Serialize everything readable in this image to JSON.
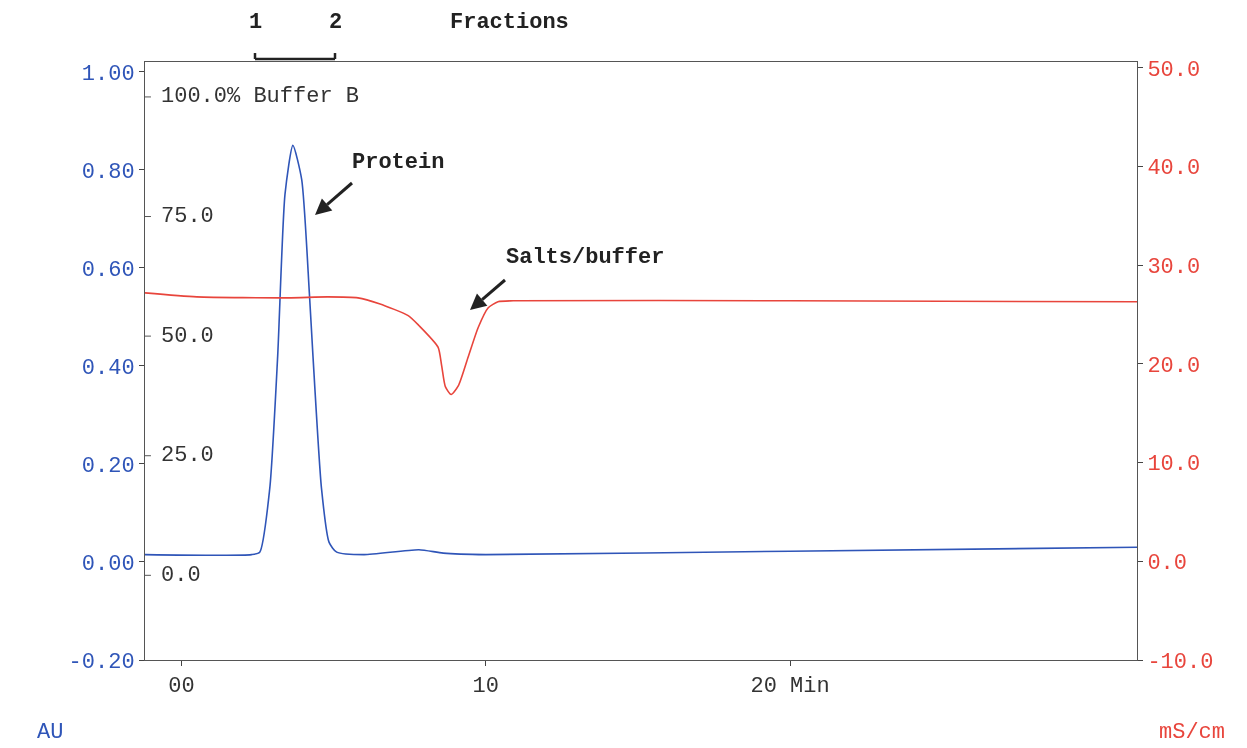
{
  "chart_data": {
    "type": "line",
    "ylabel": "AU",
    "y2label": "mS/cm",
    "grid": false,
    "marker": "none",
    "line_style": "solid",
    "xlim": [
      -1.2,
      31.4
    ],
    "xticks": [
      {
        "value": 0,
        "label": "00"
      },
      10,
      {
        "value": 20,
        "label": "20 Min"
      }
    ],
    "ylim": [
      -0.2,
      1.02
    ],
    "yticks": [
      {
        "value": -0.2,
        "label": "-0.20"
      },
      {
        "value": 0,
        "label": "0.00"
      },
      {
        "value": 0.2,
        "label": "0.20"
      },
      {
        "value": 0.4,
        "label": "0.40"
      },
      {
        "value": 0.6,
        "label": "0.60"
      },
      {
        "value": 0.8,
        "label": "0.80"
      },
      {
        "value": 1,
        "label": "1.00"
      }
    ],
    "y2lim": [
      -10,
      50.6
    ],
    "y2ticks": [
      {
        "value": -10,
        "label": "-10.0"
      },
      {
        "value": 0,
        "label": "0.0"
      },
      {
        "value": 10,
        "label": "10.0"
      },
      {
        "value": 20,
        "label": "20.0"
      },
      {
        "value": 30,
        "label": "30.0"
      },
      {
        "value": 40,
        "label": "40.0"
      },
      {
        "value": 50,
        "label": "50.0"
      }
    ],
    "y3lim": [
      -17.7,
      107.3
    ],
    "y3ticks": [
      {
        "value": 0,
        "label": "0.0"
      },
      {
        "value": 25,
        "label": "25.0"
      },
      {
        "value": 50,
        "label": "50.0"
      },
      {
        "value": 75,
        "label": "75.0"
      },
      {
        "value": 100,
        "label": "100.0% Buffer B"
      }
    ],
    "series": [
      {
        "color": "#2f55b8",
        "x": [
          -1.2,
          2.3,
          2.57,
          2.9,
          3.16,
          3.4,
          3.66,
          3.95,
          4.2,
          4.32,
          4.6,
          4.85,
          5.1,
          6,
          7.8,
          8.6,
          10,
          20,
          31.4
        ],
        "values": [
          0.015,
          0.015,
          0.02,
          0.15,
          0.42,
          0.75,
          0.85,
          0.78,
          0.55,
          0.42,
          0.15,
          0.04,
          0.02,
          0.015,
          0.025,
          0.018,
          0.015,
          0.022,
          0.03
        ]
      },
      {
        "color": "#e8453c",
        "axis": "y2",
        "x": [
          -1.2,
          0.5,
          3.5,
          4.8,
          5.8,
          6.5,
          7.45,
          7.8,
          8.43,
          8.55,
          8.67,
          8.86,
          9.1,
          9.42,
          9.75,
          10.08,
          10.4,
          10.9,
          20,
          31.4
        ],
        "values": [
          27.2,
          26.8,
          26.7,
          26.8,
          26.7,
          26.1,
          24.9,
          23.9,
          21.7,
          19.8,
          17.7,
          16.9,
          17.8,
          20.7,
          23.7,
          25.7,
          26.3,
          26.4,
          26.4,
          26.3
        ]
      }
    ],
    "annotations": [
      "Protein",
      "Salts/buffer",
      "1",
      "2",
      "Fractions"
    ]
  }
}
